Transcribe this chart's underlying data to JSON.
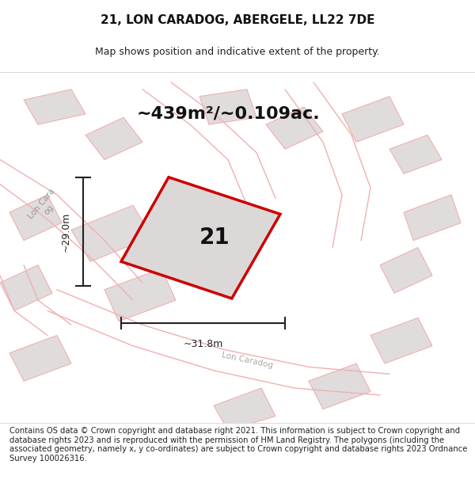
{
  "title": "21, LON CARADOG, ABERGELE, LL22 7DE",
  "subtitle": "Map shows position and indicative extent of the property.",
  "area_text": "~439m²/~0.109ac.",
  "property_number": "21",
  "dim_width": "~31.8m",
  "dim_height": "~29.0m",
  "footer": "Contains OS data © Crown copyright and database right 2021. This information is subject to Crown copyright and database rights 2023 and is reproduced with the permission of HM Land Registry. The polygons (including the associated geometry, namely x, y co-ordinates) are subject to Crown copyright and database rights 2023 Ordnance Survey 100026316.",
  "bg_color": "#f0eeee",
  "map_bg": "#f5f3f3",
  "plot_color": "#cc0000",
  "plot_fill": "#e8e4e4",
  "road_color": "#f0b0b0",
  "building_color": "#d8d4d4",
  "building_fill": "#e0dcdc",
  "dim_color": "#222222",
  "road_label_color": "#888888",
  "title_fontsize": 11,
  "subtitle_fontsize": 9,
  "area_fontsize": 16,
  "number_fontsize": 20,
  "footer_fontsize": 7.2
}
